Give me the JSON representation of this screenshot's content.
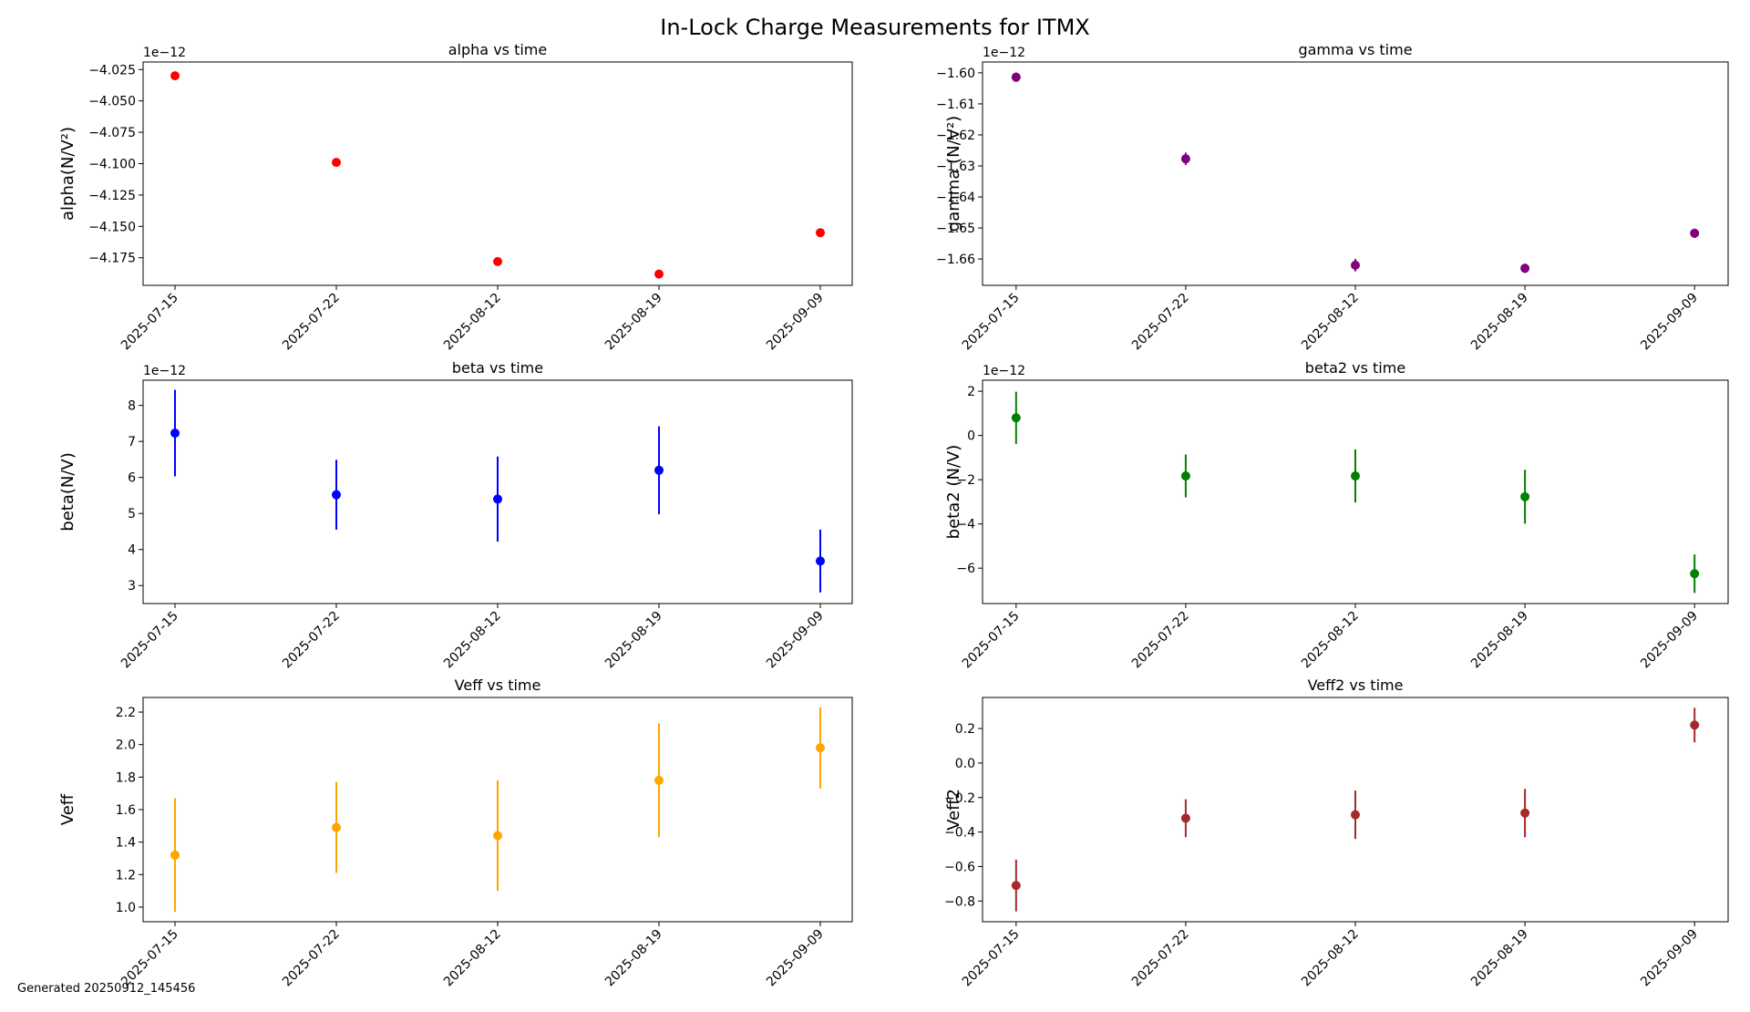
{
  "figure": {
    "title": "In-Lock Charge Measurements for ITMX",
    "footer": "Generated 20250912_145456"
  },
  "chart_data": [
    {
      "type": "scatter",
      "title": "alpha vs time",
      "ylabel": "alpha(N/V²)",
      "exponent_label": "1e−12",
      "x": [
        "2025-07-15",
        "2025-07-22",
        "2025-08-12",
        "2025-08-19",
        "2025-09-09"
      ],
      "values": [
        -4.03,
        -4.099,
        -4.178,
        -4.188,
        -4.155
      ],
      "errors": [
        0.0005,
        0.0005,
        0.0005,
        0.0005,
        0.0005
      ],
      "ylim": [
        -4.197,
        -4.019
      ],
      "yticks": [
        -4.175,
        -4.15,
        -4.125,
        -4.1,
        -4.075,
        -4.05,
        -4.025
      ],
      "ytick_labels": [
        "−4.175",
        "−4.150",
        "−4.125",
        "−4.100",
        "−4.075",
        "−4.050",
        "−4.025"
      ],
      "color": "#ff0000",
      "grid": false
    },
    {
      "type": "scatter",
      "title": "gamma vs time",
      "ylabel": "gamma (N/V²)",
      "exponent_label": "1e−12",
      "x": [
        "2025-07-15",
        "2025-07-22",
        "2025-08-12",
        "2025-08-19",
        "2025-09-09"
      ],
      "values": [
        -1.6014,
        -1.6277,
        -1.662,
        -1.663,
        -1.6517
      ],
      "errors": [
        0.0015,
        0.002,
        0.002,
        0.0015,
        0.0015
      ],
      "ylim": [
        -1.6685,
        -1.5965
      ],
      "yticks": [
        -1.66,
        -1.65,
        -1.64,
        -1.63,
        -1.62,
        -1.61,
        -1.6
      ],
      "ytick_labels": [
        "−1.66",
        "−1.65",
        "−1.64",
        "−1.63",
        "−1.62",
        "−1.61",
        "−1.60"
      ],
      "color": "#800080",
      "grid": false
    },
    {
      "type": "scatter",
      "title": "beta vs time",
      "ylabel": "beta(N/V)",
      "exponent_label": "1e−12",
      "x": [
        "2025-07-15",
        "2025-07-22",
        "2025-08-12",
        "2025-08-19",
        "2025-09-09"
      ],
      "values": [
        7.23,
        5.52,
        5.4,
        6.2,
        3.68
      ],
      "errors": [
        1.2,
        0.97,
        1.18,
        1.22,
        0.87
      ],
      "ylim": [
        2.5,
        8.7
      ],
      "yticks": [
        3,
        4,
        5,
        6,
        7,
        8
      ],
      "ytick_labels": [
        "3",
        "4",
        "5",
        "6",
        "7",
        "8"
      ],
      "color": "#0000ff",
      "grid": false
    },
    {
      "type": "scatter",
      "title": "beta2 vs time",
      "ylabel": "beta2 (N/V)",
      "exponent_label": "1e−12",
      "x": [
        "2025-07-15",
        "2025-07-22",
        "2025-08-12",
        "2025-08-19",
        "2025-09-09"
      ],
      "values": [
        0.8,
        -1.83,
        -1.83,
        -2.77,
        -6.25
      ],
      "errors": [
        1.18,
        0.97,
        1.2,
        1.22,
        0.87
      ],
      "ylim": [
        -7.6,
        2.5
      ],
      "yticks": [
        -6,
        -4,
        -2,
        0,
        2
      ],
      "ytick_labels": [
        "−6",
        "−4",
        "−2",
        "0",
        "2"
      ],
      "color": "#008000",
      "grid": false
    },
    {
      "type": "scatter",
      "title": "Veff vs time",
      "ylabel": "Veff",
      "exponent_label": "",
      "x": [
        "2025-07-15",
        "2025-07-22",
        "2025-08-12",
        "2025-08-19",
        "2025-09-09"
      ],
      "values": [
        1.32,
        1.49,
        1.44,
        1.78,
        1.98
      ],
      "errors": [
        0.35,
        0.28,
        0.34,
        0.35,
        0.25
      ],
      "ylim": [
        0.91,
        2.29
      ],
      "yticks": [
        1.0,
        1.2,
        1.4,
        1.6,
        1.8,
        2.0,
        2.2
      ],
      "ytick_labels": [
        "1.0",
        "1.2",
        "1.4",
        "1.6",
        "1.8",
        "2.0",
        "2.2"
      ],
      "color": "#ffa500",
      "grid": false
    },
    {
      "type": "scatter",
      "title": "Veff2 vs time",
      "ylabel": "Veff2",
      "exponent_label": "",
      "x": [
        "2025-07-15",
        "2025-07-22",
        "2025-08-12",
        "2025-08-19",
        "2025-09-09"
      ],
      "values": [
        -0.71,
        -0.32,
        -0.3,
        -0.29,
        0.22
      ],
      "errors": [
        0.15,
        0.11,
        0.14,
        0.14,
        0.1
      ],
      "ylim": [
        -0.92,
        0.38
      ],
      "yticks": [
        -0.8,
        -0.6,
        -0.4,
        -0.2,
        0.0,
        0.2
      ],
      "ytick_labels": [
        "−0.8",
        "−0.6",
        "−0.4",
        "−0.2",
        "0.0",
        "0.2"
      ],
      "color": "#a52a2a",
      "grid": false
    }
  ]
}
